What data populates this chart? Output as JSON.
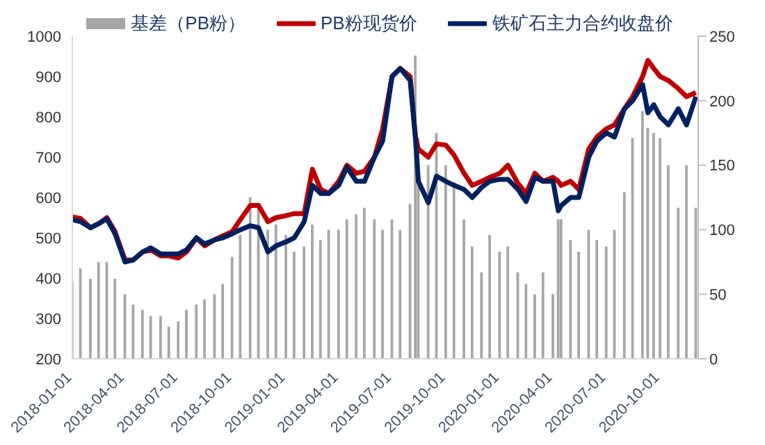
{
  "chart_data": {
    "type": "line",
    "x": [
      "2018-01-01",
      "2018-01-15",
      "2018-02-01",
      "2018-02-15",
      "2018-03-01",
      "2018-03-15",
      "2018-04-01",
      "2018-04-15",
      "2018-05-01",
      "2018-05-15",
      "2018-06-01",
      "2018-06-15",
      "2018-07-01",
      "2018-07-15",
      "2018-08-01",
      "2018-08-15",
      "2018-09-01",
      "2018-09-15",
      "2018-10-01",
      "2018-10-15",
      "2018-11-01",
      "2018-11-15",
      "2018-12-01",
      "2018-12-15",
      "2019-01-01",
      "2019-01-15",
      "2019-02-01",
      "2019-02-15",
      "2019-03-01",
      "2019-03-15",
      "2019-04-01",
      "2019-04-15",
      "2019-05-01",
      "2019-05-15",
      "2019-06-01",
      "2019-06-15",
      "2019-07-01",
      "2019-07-15",
      "2019-08-01",
      "2019-08-10",
      "2019-08-15",
      "2019-09-01",
      "2019-09-15",
      "2019-10-01",
      "2019-10-15",
      "2019-11-01",
      "2019-11-15",
      "2019-12-01",
      "2019-12-15",
      "2020-01-01",
      "2020-01-15",
      "2020-02-01",
      "2020-02-15",
      "2020-03-01",
      "2020-03-15",
      "2020-04-01",
      "2020-04-10",
      "2020-04-15",
      "2020-05-01",
      "2020-05-15",
      "2020-06-01",
      "2020-06-15",
      "2020-07-01",
      "2020-07-15",
      "2020-08-01",
      "2020-08-15",
      "2020-09-01",
      "2020-09-10",
      "2020-09-20",
      "2020-10-01",
      "2020-10-15",
      "2020-11-01",
      "2020-11-15",
      "2020-12-01"
    ],
    "series": [
      {
        "name": "基差（PB粉）",
        "type": "bar",
        "axis": "y2",
        "color": "#a6a6a6",
        "values": [
          60,
          70,
          62,
          75,
          75,
          62,
          50,
          42,
          38,
          33,
          33,
          25,
          29,
          38,
          42,
          46,
          50,
          58,
          79,
          96,
          125,
          121,
          100,
          104,
          96,
          83,
          87,
          104,
          92,
          100,
          100,
          108,
          112,
          117,
          108,
          100,
          108,
          100,
          120,
          235,
          171,
          150,
          175,
          150,
          137,
          108,
          87,
          67,
          96,
          83,
          87,
          67,
          58,
          50,
          67,
          50,
          108,
          108,
          92,
          83,
          100,
          92,
          87,
          100,
          129,
          171,
          192,
          179,
          175,
          171,
          150,
          117,
          150,
          117
        ]
      },
      {
        "name": "PB粉现货价",
        "color": "#c00000",
        "values": [
          552,
          548,
          525,
          535,
          550,
          515,
          445,
          445,
          465,
          470,
          455,
          455,
          450,
          465,
          500,
          480,
          495,
          505,
          515,
          545,
          580,
          580,
          540,
          550,
          555,
          560,
          560,
          670,
          620,
          610,
          640,
          680,
          660,
          665,
          700,
          770,
          900,
          920,
          900,
          750,
          720,
          700,
          733,
          730,
          705,
          660,
          630,
          640,
          650,
          660,
          680,
          635,
          610,
          660,
          640,
          650,
          640,
          630,
          640,
          620,
          720,
          750,
          770,
          780,
          820,
          850,
          900,
          940,
          920,
          900,
          890,
          870,
          850,
          860
        ]
      },
      {
        "name": "铁矿石主力合约收盘价",
        "color": "#002060",
        "values": [
          545,
          540,
          525,
          535,
          547,
          510,
          440,
          445,
          465,
          475,
          460,
          460,
          460,
          470,
          500,
          485,
          495,
          500,
          510,
          520,
          530,
          525,
          465,
          480,
          490,
          500,
          540,
          630,
          610,
          610,
          630,
          675,
          640,
          640,
          700,
          740,
          900,
          920,
          890,
          747,
          640,
          587,
          653,
          640,
          630,
          620,
          600,
          625,
          640,
          645,
          645,
          620,
          590,
          650,
          640,
          640,
          567,
          580,
          600,
          600,
          700,
          740,
          760,
          750,
          820,
          840,
          880,
          810,
          830,
          800,
          780,
          820,
          780,
          850
        ]
      }
    ],
    "xlim": [
      "2018-01-01",
      "2020-12-05"
    ],
    "xticks": [
      "2018-01-01",
      "2018-04-01",
      "2018-07-01",
      "2018-10-01",
      "2019-01-01",
      "2019-04-01",
      "2019-07-01",
      "2019-10-01",
      "2020-01-01",
      "2020-04-01",
      "2020-07-01",
      "2020-10-01"
    ],
    "ylim": [
      200,
      1000
    ],
    "yticks": [
      200,
      300,
      400,
      500,
      600,
      700,
      800,
      900,
      1000
    ],
    "y2lim": [
      0,
      250
    ],
    "y2ticks": [
      0,
      50,
      100,
      150,
      200,
      250
    ],
    "legend": "top",
    "grid": false,
    "marker": "none",
    "line_style": "solid"
  }
}
